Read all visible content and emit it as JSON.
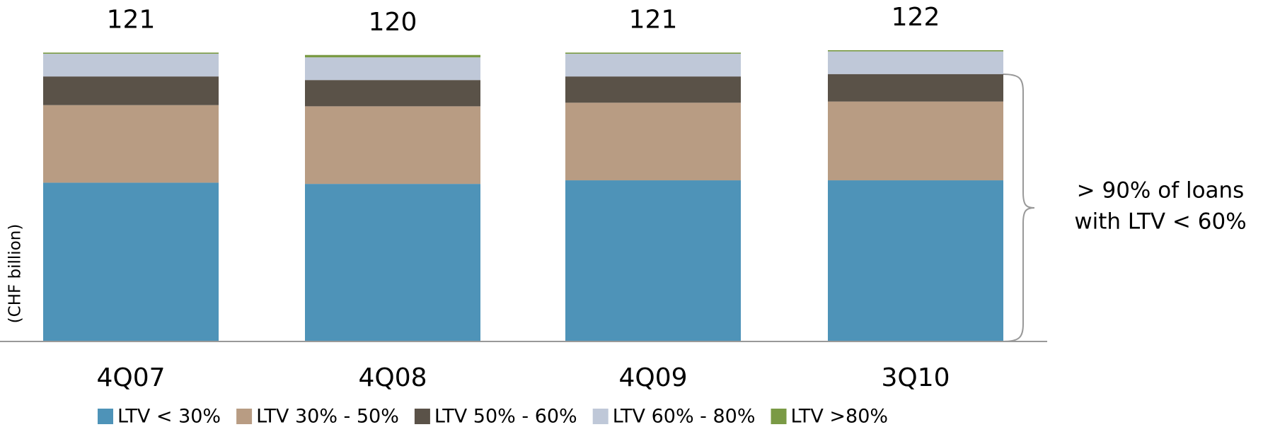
{
  "chart_data": {
    "type": "stacked_bar",
    "y_label": "(CHF billion)",
    "categories": [
      "4Q07",
      "4Q08",
      "4Q09",
      "3Q10"
    ],
    "totals": [
      121,
      120,
      121,
      122
    ],
    "series": [
      {
        "name": "LTV < 30%",
        "color": "#4e93b8",
        "values": [
          66.5,
          66,
          67.5,
          67.5
        ]
      },
      {
        "name": "LTV 30% - 50%",
        "color": "#b89c83",
        "values": [
          32.5,
          32.5,
          32.5,
          33
        ]
      },
      {
        "name": "LTV 50% - 60%",
        "color": "#5a5248",
        "values": [
          12,
          11,
          11,
          11.5
        ]
      },
      {
        "name": "LTV 60% - 80%",
        "color": "#bfc8d8",
        "values": [
          9.5,
          9.5,
          9.5,
          9.5
        ]
      },
      {
        "name": "LTV >80%",
        "color": "#7a9a45",
        "values": [
          0.5,
          1,
          0.5,
          0.5
        ]
      }
    ],
    "annotation": [
      "> 90% of loans",
      "with LTV < 60%"
    ]
  }
}
